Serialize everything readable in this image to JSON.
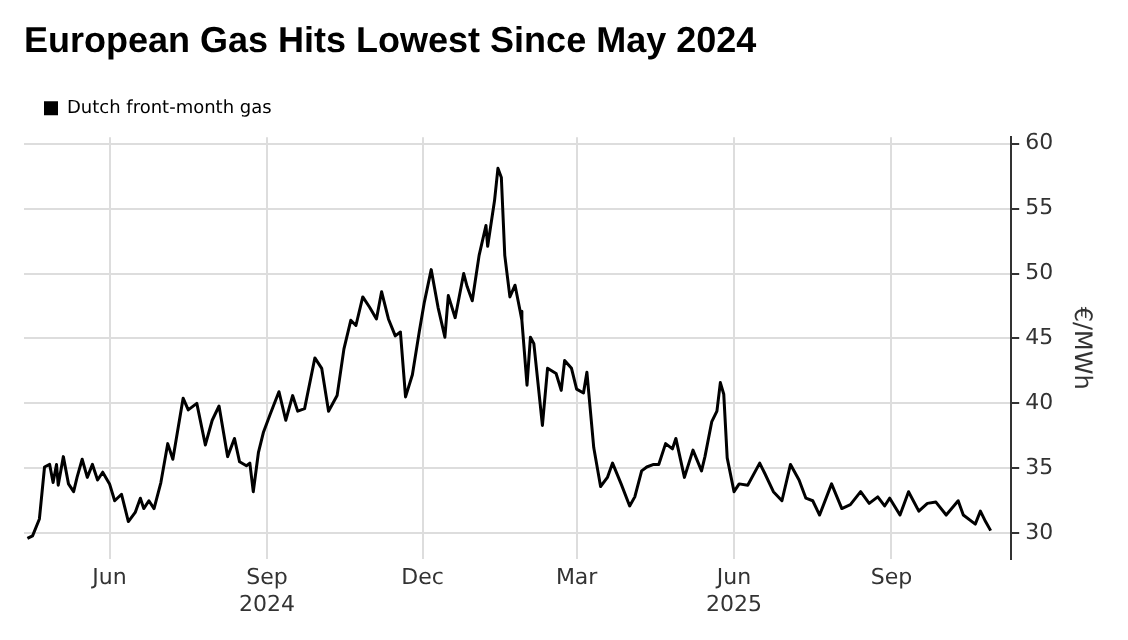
{
  "chart_data": {
    "type": "line",
    "title": "European Gas Hits Lowest Since May 2024",
    "ylabel": "€/MWh",
    "legend": "top left",
    "grid": true,
    "marker": "none",
    "line_style": "solid",
    "xlim": [
      "2024-04-12",
      "2025-11-10"
    ],
    "ylim": [
      28,
      60.5
    ],
    "yticks": [
      30,
      35,
      40,
      45,
      50,
      55,
      60
    ],
    "xticks": [
      {
        "value": "2024-06-01",
        "label": "Jun"
      },
      {
        "value": "2024-09-01",
        "label": "Sep\n2024"
      },
      {
        "value": "2024-12-01",
        "label": "Dec"
      },
      {
        "value": "2025-03-01",
        "label": "Mar"
      },
      {
        "value": "2025-06-01",
        "label": "Jun\n2025"
      },
      {
        "value": "2025-09-01",
        "label": "Sep"
      }
    ],
    "series": [
      {
        "name": "Dutch front-month gas",
        "color": "#000000",
        "x": [
          "2024-04-14",
          "2024-04-17",
          "2024-04-21",
          "2024-04-24",
          "2024-04-27",
          "2024-04-29",
          "2024-05-01",
          "2024-05-02",
          "2024-05-05",
          "2024-05-08",
          "2024-05-11",
          "2024-05-13",
          "2024-05-16",
          "2024-05-19",
          "2024-05-22",
          "2024-05-25",
          "2024-05-28",
          "2024-06-01",
          "2024-06-04",
          "2024-06-08",
          "2024-06-12",
          "2024-06-16",
          "2024-06-19",
          "2024-06-21",
          "2024-06-24",
          "2024-06-27",
          "2024-07-01",
          "2024-07-05",
          "2024-07-08",
          "2024-07-14",
          "2024-07-17",
          "2024-07-22",
          "2024-07-27",
          "2024-07-31",
          "2024-08-04",
          "2024-08-09",
          "2024-08-13",
          "2024-08-16",
          "2024-08-20",
          "2024-08-22",
          "2024-08-24",
          "2024-08-27",
          "2024-08-30",
          "2024-09-03",
          "2024-09-08",
          "2024-09-12",
          "2024-09-16",
          "2024-09-19",
          "2024-09-23",
          "2024-09-29",
          "2024-10-03",
          "2024-10-07",
          "2024-10-12",
          "2024-10-16",
          "2024-10-20",
          "2024-10-23",
          "2024-10-27",
          "2024-10-31",
          "2024-11-04",
          "2024-11-07",
          "2024-11-11",
          "2024-11-15",
          "2024-11-18",
          "2024-11-21",
          "2024-11-25",
          "2024-11-29",
          "2024-12-02",
          "2024-12-06",
          "2024-12-10",
          "2024-12-14",
          "2024-12-16",
          "2024-12-20",
          "2024-12-25",
          "2024-12-27",
          "2024-12-30",
          "2025-01-03",
          "2025-01-07",
          "2025-01-08",
          "2025-01-12",
          "2025-01-14",
          "2025-01-16",
          "2025-01-18",
          "2025-01-21",
          "2025-01-24",
          "2025-01-27",
          "2025-01-28",
          "2025-01-31",
          "2025-02-02",
          "2025-02-04",
          "2025-02-09",
          "2025-02-12",
          "2025-02-17",
          "2025-02-20",
          "2025-02-22",
          "2025-02-26",
          "2025-03-01",
          "2025-03-05",
          "2025-03-07",
          "2025-03-11",
          "2025-03-15",
          "2025-03-19",
          "2025-03-22",
          "2025-03-27",
          "2025-04-01",
          "2025-04-04",
          "2025-04-08",
          "2025-04-11",
          "2025-04-15",
          "2025-04-18",
          "2025-04-22",
          "2025-04-26",
          "2025-04-28",
          "2025-05-03",
          "2025-05-08",
          "2025-05-13",
          "2025-05-15",
          "2025-05-19",
          "2025-05-22",
          "2025-05-24",
          "2025-05-26",
          "2025-05-28",
          "2025-06-01",
          "2025-06-04",
          "2025-06-09",
          "2025-06-16",
          "2025-06-19",
          "2025-06-24",
          "2025-06-29",
          "2025-07-04",
          "2025-07-09",
          "2025-07-13",
          "2025-07-17",
          "2025-07-21",
          "2025-07-28",
          "2025-08-03",
          "2025-08-08",
          "2025-08-14",
          "2025-08-19",
          "2025-08-24",
          "2025-08-28",
          "2025-08-31",
          "2025-09-06",
          "2025-09-11",
          "2025-09-17",
          "2025-09-22",
          "2025-09-27",
          "2025-10-03",
          "2025-10-10",
          "2025-10-13",
          "2025-10-20",
          "2025-10-23",
          "2025-10-26",
          "2025-10-29"
        ],
        "values": [
          29.6,
          29.8,
          31.1,
          35.1,
          35.3,
          33.9,
          35.3,
          33.7,
          35.9,
          33.8,
          33.2,
          34.3,
          35.7,
          34.3,
          35.3,
          34.1,
          34.7,
          33.8,
          32.5,
          33.0,
          30.9,
          31.6,
          32.7,
          31.9,
          32.5,
          31.9,
          33.9,
          36.9,
          35.7,
          40.4,
          39.5,
          40.0,
          36.8,
          38.7,
          39.8,
          35.9,
          37.3,
          35.5,
          35.2,
          35.4,
          33.2,
          36.2,
          37.8,
          39.2,
          40.9,
          38.7,
          40.6,
          39.4,
          39.6,
          43.5,
          42.7,
          39.4,
          40.6,
          44.2,
          46.4,
          46.0,
          48.2,
          47.4,
          46.5,
          48.6,
          46.5,
          45.2,
          45.5,
          40.5,
          42.2,
          45.5,
          47.8,
          50.3,
          47.4,
          45.1,
          48.3,
          46.6,
          50.0,
          49.0,
          47.9,
          51.4,
          53.7,
          52.1,
          55.6,
          58.1,
          57.4,
          51.4,
          48.2,
          49.1,
          47.1,
          46.4,
          41.4,
          45.1,
          44.6,
          38.3,
          42.7,
          42.3,
          41.0,
          43.3,
          42.7,
          41.1,
          40.8,
          42.4,
          36.6,
          33.6,
          34.3,
          35.4,
          33.8,
          32.1,
          32.8,
          34.8,
          35.1,
          35.3,
          35.3,
          36.9,
          36.5,
          37.3,
          34.3,
          36.4,
          34.8,
          35.9,
          38.6,
          39.4,
          41.6,
          40.7,
          35.8,
          33.2,
          33.8,
          33.7,
          35.4,
          34.6,
          33.2,
          32.5,
          35.3,
          34.1,
          32.7,
          32.5,
          31.4,
          33.8,
          31.9,
          32.2,
          33.2,
          32.3,
          32.8,
          32.1,
          32.7,
          31.4,
          33.2,
          31.7,
          32.3,
          32.4,
          31.4,
          32.5,
          31.4,
          30.7,
          31.7,
          30.9,
          30.2
        ]
      }
    ]
  }
}
